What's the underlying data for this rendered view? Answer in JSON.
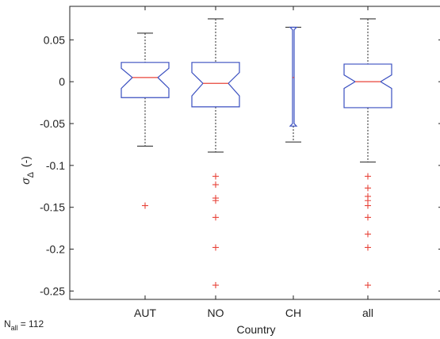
{
  "chart_data": {
    "type": "box",
    "xlabel": "Country",
    "ylabel_main": "σ",
    "ylabel_sub": "Δ",
    "ylabel_unit": "(-)",
    "ylim": [
      -0.26,
      0.09
    ],
    "yticks": [
      0.05,
      0,
      -0.05,
      -0.1,
      -0.15,
      -0.2,
      -0.25
    ],
    "ytick_labels": [
      "0.05",
      "0",
      "-0.05",
      "-0.1",
      "-0.15",
      "-0.2",
      "-0.25"
    ],
    "categories": [
      "AUT",
      "NO",
      "CH",
      "all"
    ],
    "boxes": [
      {
        "label": "AUT",
        "whisker_low": -0.077,
        "q1": -0.019,
        "median": 0.005,
        "q3": 0.023,
        "whisker_high": 0.058,
        "notch_low": -0.008,
        "notch_high": 0.016,
        "outliers": [
          -0.148
        ]
      },
      {
        "label": "NO",
        "whisker_low": -0.084,
        "q1": -0.03,
        "median": -0.002,
        "q3": 0.023,
        "whisker_high": 0.075,
        "notch_low": -0.017,
        "notch_high": 0.011,
        "outliers": [
          -0.113,
          -0.123,
          -0.139,
          -0.142,
          -0.162,
          -0.198,
          -0.243
        ]
      },
      {
        "label": "CH",
        "whisker_low": -0.072,
        "q1": -0.053,
        "median": 0.005,
        "q3": 0.065,
        "whisker_high": 0.065,
        "notch_low": -0.05,
        "notch_high": 0.062,
        "outliers": []
      },
      {
        "label": "all",
        "whisker_low": -0.096,
        "q1": -0.031,
        "median": 0.0,
        "q3": 0.021,
        "whisker_high": 0.075,
        "notch_low": -0.008,
        "notch_high": 0.008,
        "outliers": [
          -0.113,
          -0.127,
          -0.137,
          -0.142,
          -0.148,
          -0.162,
          -0.182,
          -0.198,
          -0.243
        ]
      }
    ],
    "annotation_main": "N",
    "annotation_sub": "all",
    "annotation_value": "= 112",
    "colors": {
      "box": "#3a4fc0",
      "median": "#e8443a",
      "outlier": "#e8443a",
      "whisker": "#222222",
      "axis": "#222222"
    },
    "grid": false
  }
}
